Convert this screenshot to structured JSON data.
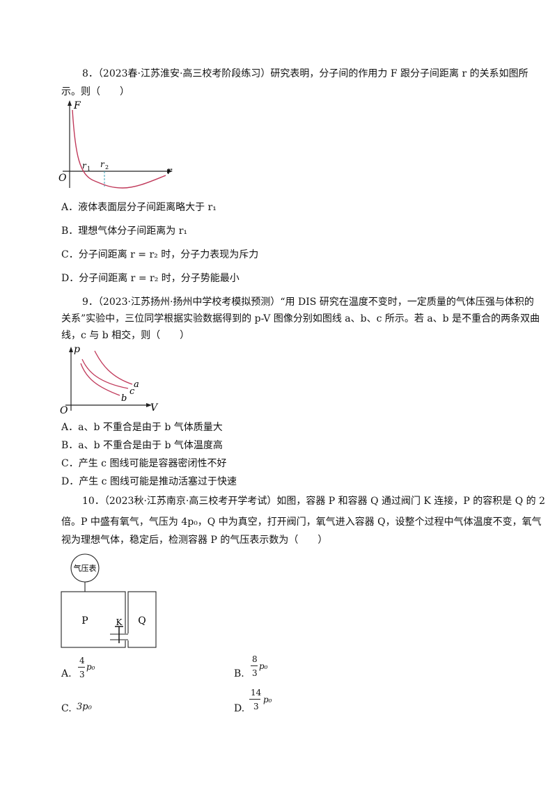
{
  "q8": {
    "stem_line1": "8．（2023春·江苏淮安·高三校考阶段练习）研究表明，分子间的作用力 F 跟分子间距离 r 的关系如图所",
    "stem_line2": "示。则（　　）",
    "figure": {
      "axis_y": "F",
      "axis_x": "r",
      "origin": "O",
      "r1": "r",
      "r1_sub": "1",
      "r2": "r",
      "r2_sub": "2"
    },
    "options": [
      "A．液体表面层分子间距离略大于 r₁",
      "B．理想气体分子间距离为 r₁",
      "C．分子间距离 r = r₂ 时，分子力表现为斥力",
      "D．分子间距离 r = r₂ 时，分子势能最小"
    ]
  },
  "q9": {
    "stem_line1": "9．（2023·江苏扬州·扬州中学校考模拟预测）“用 DIS 研究在温度不变时，一定质量的气体压强与体积的",
    "stem_line2": "关系”实验中，三位同学根据实验数据得到的 p-V 图像分别如图线 a、b、c 所示。若 a、b 是不重合的两条双曲",
    "stem_line3": "线，c 与 b 相交，则（　　）",
    "figure": {
      "axis_y": "p",
      "axis_x": "V",
      "origin": "O",
      "a": "a",
      "b": "b",
      "c": "c"
    },
    "options": [
      "A．a、b 不重合是由于 b 气体质量大",
      "B．a、b 不重合是由于 b 气体温度高",
      "C．产生 c 图线可能是容器密闭性不好",
      "D．产生 c 图线可能是推动活塞过于快速"
    ]
  },
  "q10": {
    "stem_line1": "10．（2023秋·江苏南京·高三校考开学考试）如图，容器 P 和容器 Q 通过阀门 K 连接，P 的容积是 Q 的 2",
    "stem_line2": "倍。P 中盛有氧气，气压为 4p₀，Q 中为真空，打开阀门，氧气进入容器 Q，设整个过程中气体温度不变，氧气",
    "stem_line3": "视为理想气体，稳定后，检测容器 P 的气压表示数为（　　）",
    "figure": {
      "gauge": "气压表",
      "P": "P",
      "K": "K",
      "Q": "Q"
    },
    "options": {
      "A_label": "A.",
      "A_num": "4",
      "A_den": "3",
      "A_var": "p₀",
      "B_label": "B.",
      "B_num": "8",
      "B_den": "3",
      "B_var": "p₀",
      "C_label": "C.",
      "C_val": "3p₀",
      "D_label": "D.",
      "D_num": "14",
      "D_den": "3",
      "D_var": "p₀"
    }
  }
}
